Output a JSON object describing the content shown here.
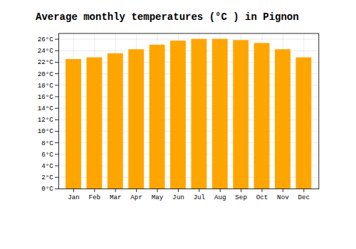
{
  "chart_data": {
    "type": "bar",
    "title": "Average monthly temperatures (°C ) in Pignon",
    "categories": [
      "Jan",
      "Feb",
      "Mar",
      "Apr",
      "May",
      "Jun",
      "Jul",
      "Aug",
      "Sep",
      "Oct",
      "Nov",
      "Dec"
    ],
    "values": [
      22.5,
      22.8,
      23.5,
      24.2,
      25.0,
      25.7,
      26.0,
      26.0,
      25.8,
      25.3,
      24.2,
      22.8
    ],
    "color": "#FFA500",
    "ylim": [
      0,
      27
    ],
    "yticks": [
      {
        "value": 0,
        "label": "0°C"
      },
      {
        "value": 2,
        "label": "2°C"
      },
      {
        "value": 4,
        "label": "4°C"
      },
      {
        "value": 6,
        "label": "6°C"
      },
      {
        "value": 8,
        "label": "8°C"
      },
      {
        "value": 10,
        "label": "10°C"
      },
      {
        "value": 12,
        "label": "12°C"
      },
      {
        "value": 14,
        "label": "14°C"
      },
      {
        "value": 16,
        "label": "16°C"
      },
      {
        "value": 18,
        "label": "18°C"
      },
      {
        "value": 20,
        "label": "20°C"
      },
      {
        "value": 22,
        "label": "22°C"
      },
      {
        "value": 24,
        "label": "24°C"
      },
      {
        "value": 26,
        "label": "26°C"
      }
    ],
    "grid": true
  }
}
